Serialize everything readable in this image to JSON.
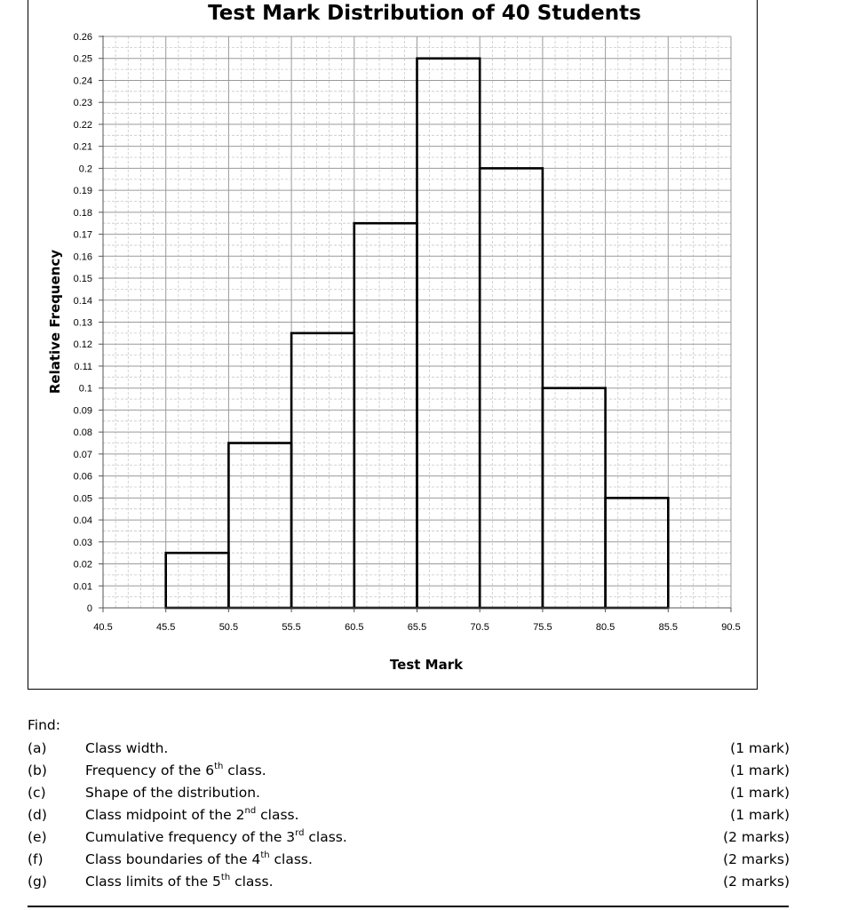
{
  "chart_data": {
    "type": "bar",
    "title": "Test Mark Distribution of 40 Students",
    "xlabel": "Test Mark",
    "ylabel": "Relative Frequency",
    "x_ticks": [
      "40.5",
      "45.5",
      "50.5",
      "55.5",
      "60.5",
      "65.5",
      "70.5",
      "75.5",
      "80.5",
      "85.5",
      "90.5"
    ],
    "y_ticks": [
      "0",
      "0.01",
      "0.02",
      "0.03",
      "0.04",
      "0.05",
      "0.06",
      "0.07",
      "0.08",
      "0.09",
      "0.1",
      "0.11",
      "0.12",
      "0.13",
      "0.14",
      "0.15",
      "0.16",
      "0.17",
      "0.18",
      "0.19",
      "0.2",
      "0.21",
      "0.22",
      "0.23",
      "0.24",
      "0.25",
      "0.26"
    ],
    "xlim": [
      40.5,
      90.5
    ],
    "ylim": [
      0,
      0.26
    ],
    "grid": true,
    "bins": [
      {
        "lower": 45.5,
        "upper": 50.5,
        "value": 0.025
      },
      {
        "lower": 50.5,
        "upper": 55.5,
        "value": 0.075
      },
      {
        "lower": 55.5,
        "upper": 60.5,
        "value": 0.125
      },
      {
        "lower": 60.5,
        "upper": 65.5,
        "value": 0.175
      },
      {
        "lower": 65.5,
        "upper": 70.5,
        "value": 0.25
      },
      {
        "lower": 70.5,
        "upper": 75.5,
        "value": 0.2
      },
      {
        "lower": 75.5,
        "upper": 80.5,
        "value": 0.1
      },
      {
        "lower": 80.5,
        "upper": 85.5,
        "value": 0.05
      }
    ]
  },
  "questions": {
    "intro": "Find:",
    "items": [
      {
        "letter": "(a)",
        "text": "Class width.",
        "ordinal_sup": "",
        "after": "",
        "marks": "(1 mark)"
      },
      {
        "letter": "(b)",
        "text": "Frequency of the 6",
        "ordinal_sup": "th",
        "after": " class.",
        "marks": "(1 mark)"
      },
      {
        "letter": "(c)",
        "text": "Shape of the distribution.",
        "ordinal_sup": "",
        "after": "",
        "marks": "(1 mark)"
      },
      {
        "letter": "(d)",
        "text": "Class midpoint of the 2",
        "ordinal_sup": "nd",
        "after": " class.",
        "marks": "(1 mark)"
      },
      {
        "letter": "(e)",
        "text": "Cumulative frequency of the 3",
        "ordinal_sup": "rd",
        "after": " class.",
        "marks": "(2 marks)"
      },
      {
        "letter": "(f)",
        "text": "Class boundaries of the 4",
        "ordinal_sup": "th",
        "after": " class.",
        "marks": "(2 marks)"
      },
      {
        "letter": "(g)",
        "text": "Class limits of the 5",
        "ordinal_sup": "th",
        "after": " class.",
        "marks": "(2 marks)"
      }
    ]
  }
}
